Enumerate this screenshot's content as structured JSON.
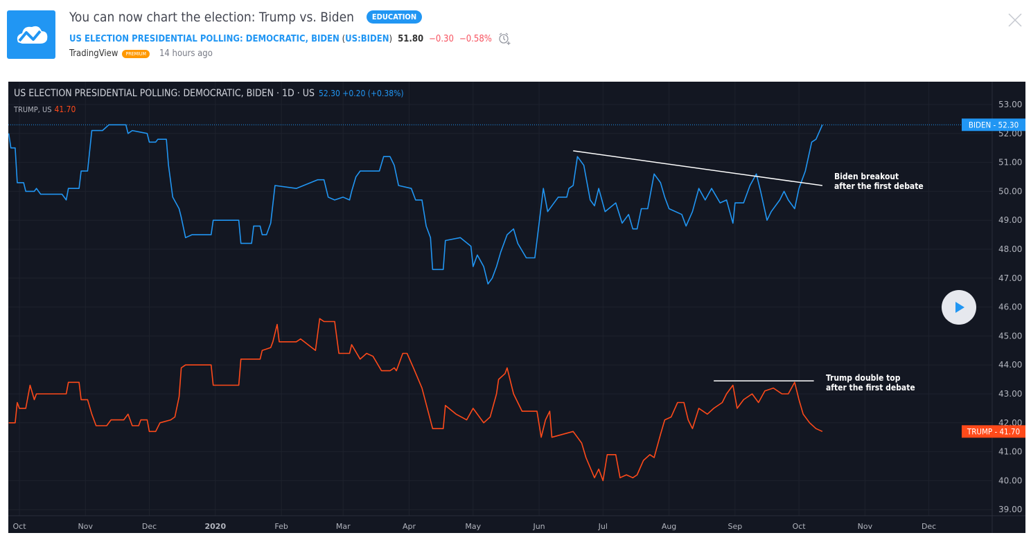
{
  "header": {
    "title": "You can now chart the election: Trump vs. Biden",
    "badge": "EDUCATION",
    "symbol_name": "US ELECTION PRESIDENTIAL POLLING: DEMOCRATIC, BIDEN",
    "symbol_ticker": "US:BIDEN",
    "price": "51.80",
    "change": "−0.30",
    "change_pct": "−0.58%",
    "author": "TradingView",
    "author_badge": "PREMIUM",
    "time_ago": "14 hours ago",
    "icons": [
      "tradingview-logo-icon",
      "alarm-clock-add-icon",
      "close-icon"
    ]
  },
  "chart_data": {
    "type": "line",
    "legend": {
      "main": "US ELECTION PRESIDENTIAL POLLING: DEMOCRATIC, BIDEN · 1D · US",
      "main_values": "52.30 +0.20 (+0.38%)",
      "compare": "TRUMP, US",
      "compare_value": "41.70"
    },
    "x_range": [
      "2019-09-26",
      "2020-12-31"
    ],
    "ylim": [
      38.7,
      53.8
    ],
    "y_ticks": [
      "53.00",
      "52.00",
      "51.00",
      "50.00",
      "49.00",
      "48.00",
      "47.00",
      "46.00",
      "45.00",
      "44.00",
      "43.00",
      "42.00",
      "41.00",
      "40.00",
      "39.00"
    ],
    "x_ticks": [
      [
        "2019-10-01",
        "Oct"
      ],
      [
        "2019-11-01",
        "Nov"
      ],
      [
        "2019-12-01",
        "Dec"
      ],
      [
        "2020-01-01",
        "2020"
      ],
      [
        "2020-02-01",
        "Feb"
      ],
      [
        "2020-03-01",
        "Mar"
      ],
      [
        "2020-04-01",
        "Apr"
      ],
      [
        "2020-05-01",
        "May"
      ],
      [
        "2020-06-01",
        "Jun"
      ],
      [
        "2020-07-01",
        "Jul"
      ],
      [
        "2020-08-01",
        "Aug"
      ],
      [
        "2020-09-01",
        "Sep"
      ],
      [
        "2020-10-01",
        "Oct"
      ],
      [
        "2020-11-01",
        "Nov"
      ],
      [
        "2020-12-01",
        "Dec"
      ]
    ],
    "grid": true,
    "series": [
      {
        "name": "BIDEN",
        "color": "#2196f3",
        "last": "52.30",
        "points": [
          [
            "2019-09-26",
            52.0
          ],
          [
            "2019-09-27",
            51.5
          ],
          [
            "2019-09-29",
            51.5
          ],
          [
            "2019-09-30",
            50.3
          ],
          [
            "2019-10-03",
            50.3
          ],
          [
            "2019-10-04",
            50.0
          ],
          [
            "2019-10-08",
            50.0
          ],
          [
            "2019-10-09",
            50.1
          ],
          [
            "2019-10-11",
            49.9
          ],
          [
            "2019-10-21",
            49.9
          ],
          [
            "2019-10-23",
            49.7
          ],
          [
            "2019-10-24",
            50.1
          ],
          [
            "2019-10-29",
            50.1
          ],
          [
            "2019-10-30",
            50.7
          ],
          [
            "2019-11-02",
            50.7
          ],
          [
            "2019-11-04",
            52.1
          ],
          [
            "2019-11-09",
            52.1
          ],
          [
            "2019-11-12",
            52.3
          ],
          [
            "2019-11-20",
            52.3
          ],
          [
            "2019-11-21",
            52.0
          ],
          [
            "2019-11-23",
            52.1
          ],
          [
            "2019-11-30",
            52.0
          ],
          [
            "2019-12-01",
            51.7
          ],
          [
            "2019-12-04",
            51.7
          ],
          [
            "2019-12-05",
            51.8
          ],
          [
            "2019-12-09",
            51.8
          ],
          [
            "2019-12-10",
            50.9
          ],
          [
            "2019-12-12",
            49.8
          ],
          [
            "2019-12-15",
            49.4
          ],
          [
            "2019-12-16",
            49.1
          ],
          [
            "2019-12-18",
            48.4
          ],
          [
            "2019-12-21",
            48.5
          ],
          [
            "2019-12-30",
            48.5
          ],
          [
            "2019-12-31",
            49.0
          ],
          [
            "2020-01-12",
            49.0
          ],
          [
            "2020-01-13",
            48.2
          ],
          [
            "2020-01-18",
            48.2
          ],
          [
            "2020-01-19",
            48.8
          ],
          [
            "2020-01-22",
            48.8
          ],
          [
            "2020-01-23",
            48.5
          ],
          [
            "2020-01-25",
            48.5
          ],
          [
            "2020-01-27",
            48.9
          ],
          [
            "2020-01-29",
            50.2
          ],
          [
            "2020-02-08",
            50.1
          ],
          [
            "2020-02-18",
            50.4
          ],
          [
            "2020-02-21",
            50.4
          ],
          [
            "2020-02-23",
            49.8
          ],
          [
            "2020-02-26",
            49.7
          ],
          [
            "2020-03-01",
            49.8
          ],
          [
            "2020-03-04",
            49.7
          ],
          [
            "2020-03-05",
            50.0
          ],
          [
            "2020-03-07",
            50.5
          ],
          [
            "2020-03-09",
            50.7
          ],
          [
            "2020-03-18",
            50.7
          ],
          [
            "2020-03-20",
            51.2
          ],
          [
            "2020-03-23",
            51.2
          ],
          [
            "2020-03-25",
            50.9
          ],
          [
            "2020-03-27",
            50.2
          ],
          [
            "2020-04-02",
            50.1
          ],
          [
            "2020-04-04",
            49.7
          ],
          [
            "2020-04-07",
            49.7
          ],
          [
            "2020-04-09",
            48.8
          ],
          [
            "2020-04-11",
            48.4
          ],
          [
            "2020-04-12",
            47.3
          ],
          [
            "2020-04-17",
            47.3
          ],
          [
            "2020-04-18",
            48.3
          ],
          [
            "2020-04-25",
            48.4
          ],
          [
            "2020-04-30",
            48.1
          ],
          [
            "2020-05-01",
            47.4
          ],
          [
            "2020-05-03",
            47.8
          ],
          [
            "2020-05-06",
            47.4
          ],
          [
            "2020-05-08",
            46.8
          ],
          [
            "2020-05-10",
            47.0
          ],
          [
            "2020-05-12",
            47.4
          ],
          [
            "2020-05-14",
            47.9
          ],
          [
            "2020-05-17",
            48.5
          ],
          [
            "2020-05-20",
            48.7
          ],
          [
            "2020-05-22",
            48.2
          ],
          [
            "2020-05-26",
            47.7
          ],
          [
            "2020-05-30",
            47.7
          ],
          [
            "2020-06-01",
            48.9
          ],
          [
            "2020-06-03",
            50.1
          ],
          [
            "2020-06-05",
            49.3
          ],
          [
            "2020-06-10",
            49.8
          ],
          [
            "2020-06-14",
            49.8
          ],
          [
            "2020-06-15",
            50.1
          ],
          [
            "2020-06-17",
            50.2
          ],
          [
            "2020-06-19",
            51.2
          ],
          [
            "2020-06-22",
            50.9
          ],
          [
            "2020-06-25",
            49.7
          ],
          [
            "2020-06-27",
            49.5
          ],
          [
            "2020-06-29",
            50.1
          ],
          [
            "2020-07-02",
            49.3
          ],
          [
            "2020-07-07",
            49.6
          ],
          [
            "2020-07-10",
            48.9
          ],
          [
            "2020-07-13",
            49.2
          ],
          [
            "2020-07-15",
            48.7
          ],
          [
            "2020-07-17",
            48.7
          ],
          [
            "2020-07-19",
            49.4
          ],
          [
            "2020-07-22",
            49.4
          ],
          [
            "2020-07-25",
            50.6
          ],
          [
            "2020-07-28",
            50.3
          ],
          [
            "2020-07-30",
            49.8
          ],
          [
            "2020-08-01",
            49.4
          ],
          [
            "2020-08-07",
            49.2
          ],
          [
            "2020-08-09",
            48.8
          ],
          [
            "2020-08-12",
            49.3
          ],
          [
            "2020-08-15",
            50.1
          ],
          [
            "2020-08-18",
            49.7
          ],
          [
            "2020-08-21",
            50.1
          ],
          [
            "2020-08-25",
            49.6
          ],
          [
            "2020-08-28",
            49.7
          ],
          [
            "2020-08-31",
            48.9
          ],
          [
            "2020-09-01",
            49.6
          ],
          [
            "2020-09-05",
            49.6
          ],
          [
            "2020-09-08",
            50.2
          ],
          [
            "2020-09-11",
            50.6
          ],
          [
            "2020-09-13",
            50.0
          ],
          [
            "2020-09-16",
            49.0
          ],
          [
            "2020-09-18",
            49.3
          ],
          [
            "2020-09-22",
            49.7
          ],
          [
            "2020-09-24",
            50.0
          ],
          [
            "2020-09-26",
            49.7
          ],
          [
            "2020-09-29",
            49.4
          ],
          [
            "2020-10-01",
            50.1
          ],
          [
            "2020-10-04",
            50.7
          ],
          [
            "2020-10-07",
            51.7
          ],
          [
            "2020-10-09",
            51.8
          ],
          [
            "2020-10-12",
            52.3
          ]
        ]
      },
      {
        "name": "TRUMP",
        "color": "#ff4a1a",
        "last": "41.70",
        "points": [
          [
            "2019-09-26",
            42.0
          ],
          [
            "2019-09-29",
            42.0
          ],
          [
            "2019-09-30",
            42.7
          ],
          [
            "2019-10-01",
            42.5
          ],
          [
            "2019-10-04",
            42.5
          ],
          [
            "2019-10-06",
            43.3
          ],
          [
            "2019-10-08",
            42.8
          ],
          [
            "2019-10-09",
            43.0
          ],
          [
            "2019-10-23",
            43.0
          ],
          [
            "2019-10-24",
            43.4
          ],
          [
            "2019-10-29",
            43.4
          ],
          [
            "2019-10-30",
            42.8
          ],
          [
            "2019-11-02",
            42.8
          ],
          [
            "2019-11-04",
            42.3
          ],
          [
            "2019-11-06",
            41.9
          ],
          [
            "2019-11-11",
            41.9
          ],
          [
            "2019-11-13",
            42.1
          ],
          [
            "2019-11-19",
            42.1
          ],
          [
            "2019-11-21",
            42.3
          ],
          [
            "2019-11-23",
            41.9
          ],
          [
            "2019-11-26",
            41.9
          ],
          [
            "2019-11-27",
            42.1
          ],
          [
            "2019-11-30",
            42.1
          ],
          [
            "2019-12-01",
            41.7
          ],
          [
            "2019-12-04",
            41.7
          ],
          [
            "2019-12-06",
            42.0
          ],
          [
            "2019-12-11",
            42.1
          ],
          [
            "2019-12-13",
            42.2
          ],
          [
            "2019-12-15",
            42.9
          ],
          [
            "2019-12-16",
            43.9
          ],
          [
            "2019-12-18",
            44.0
          ],
          [
            "2019-12-30",
            44.0
          ],
          [
            "2019-12-31",
            43.3
          ],
          [
            "2020-01-12",
            43.3
          ],
          [
            "2020-01-13",
            44.2
          ],
          [
            "2020-01-22",
            44.2
          ],
          [
            "2020-01-23",
            44.5
          ],
          [
            "2020-01-27",
            44.6
          ],
          [
            "2020-01-28",
            44.8
          ],
          [
            "2020-01-30",
            45.4
          ],
          [
            "2020-01-31",
            44.8
          ],
          [
            "2020-02-08",
            44.8
          ],
          [
            "2020-02-10",
            44.9
          ],
          [
            "2020-02-17",
            44.5
          ],
          [
            "2020-02-19",
            45.6
          ],
          [
            "2020-02-21",
            45.5
          ],
          [
            "2020-02-26",
            45.5
          ],
          [
            "2020-02-28",
            44.4
          ],
          [
            "2020-03-04",
            44.4
          ],
          [
            "2020-03-05",
            44.7
          ],
          [
            "2020-03-09",
            44.2
          ],
          [
            "2020-03-12",
            44.4
          ],
          [
            "2020-03-15",
            44.3
          ],
          [
            "2020-03-19",
            43.8
          ],
          [
            "2020-03-23",
            43.8
          ],
          [
            "2020-03-25",
            43.9
          ],
          [
            "2020-03-26",
            43.8
          ],
          [
            "2020-03-29",
            44.4
          ],
          [
            "2020-03-31",
            44.4
          ],
          [
            "2020-04-03",
            43.9
          ],
          [
            "2020-04-07",
            43.2
          ],
          [
            "2020-04-12",
            41.8
          ],
          [
            "2020-04-17",
            41.8
          ],
          [
            "2020-04-18",
            42.6
          ],
          [
            "2020-04-23",
            42.3
          ],
          [
            "2020-04-28",
            42.1
          ],
          [
            "2020-05-01",
            42.5
          ],
          [
            "2020-05-06",
            42.0
          ],
          [
            "2020-05-09",
            42.2
          ],
          [
            "2020-05-12",
            43.0
          ],
          [
            "2020-05-13",
            43.5
          ],
          [
            "2020-05-16",
            43.7
          ],
          [
            "2020-05-17",
            43.9
          ],
          [
            "2020-05-20",
            43.0
          ],
          [
            "2020-05-24",
            42.4
          ],
          [
            "2020-05-31",
            42.4
          ],
          [
            "2020-06-02",
            41.5
          ],
          [
            "2020-06-04",
            42.1
          ],
          [
            "2020-06-06",
            42.4
          ],
          [
            "2020-06-07",
            41.5
          ],
          [
            "2020-06-17",
            41.7
          ],
          [
            "2020-06-21",
            41.3
          ],
          [
            "2020-06-23",
            40.8
          ],
          [
            "2020-06-27",
            40.1
          ],
          [
            "2020-06-29",
            40.4
          ],
          [
            "2020-07-01",
            40.0
          ],
          [
            "2020-07-03",
            40.9
          ],
          [
            "2020-07-07",
            40.9
          ],
          [
            "2020-07-09",
            40.1
          ],
          [
            "2020-07-12",
            40.2
          ],
          [
            "2020-07-15",
            40.1
          ],
          [
            "2020-07-17",
            40.2
          ],
          [
            "2020-07-20",
            40.7
          ],
          [
            "2020-07-23",
            40.9
          ],
          [
            "2020-07-25",
            40.8
          ],
          [
            "2020-07-28",
            41.6
          ],
          [
            "2020-07-30",
            42.1
          ],
          [
            "2020-08-02",
            42.2
          ],
          [
            "2020-08-05",
            42.7
          ],
          [
            "2020-08-08",
            42.7
          ],
          [
            "2020-08-10",
            42.1
          ],
          [
            "2020-08-12",
            41.8
          ],
          [
            "2020-08-15",
            42.5
          ],
          [
            "2020-08-19",
            42.3
          ],
          [
            "2020-08-22",
            42.5
          ],
          [
            "2020-08-26",
            42.7
          ],
          [
            "2020-08-28",
            43.0
          ],
          [
            "2020-08-31",
            43.3
          ],
          [
            "2020-09-02",
            42.5
          ],
          [
            "2020-09-05",
            42.8
          ],
          [
            "2020-09-09",
            43.0
          ],
          [
            "2020-09-12",
            42.7
          ],
          [
            "2020-09-15",
            43.1
          ],
          [
            "2020-09-19",
            43.2
          ],
          [
            "2020-09-23",
            43.0
          ],
          [
            "2020-09-26",
            43.0
          ],
          [
            "2020-09-29",
            43.4
          ],
          [
            "2020-10-01",
            42.8
          ],
          [
            "2020-10-03",
            42.3
          ],
          [
            "2020-10-06",
            42.0
          ],
          [
            "2020-10-09",
            41.8
          ],
          [
            "2020-10-12",
            41.7
          ]
        ]
      }
    ],
    "annotations": [
      {
        "type": "trendline",
        "from": [
          "2020-06-17",
          51.4
        ],
        "to": [
          "2020-10-12",
          50.2
        ],
        "text": [
          "Biden breakout",
          "after the first debate"
        ]
      },
      {
        "type": "horizontal",
        "from": [
          "2020-08-22",
          43.45
        ],
        "to": [
          "2020-10-08",
          43.45
        ],
        "text": [
          "Trump double top",
          "after the first debate"
        ]
      }
    ]
  },
  "controls": {
    "play_icon": "play-icon"
  }
}
